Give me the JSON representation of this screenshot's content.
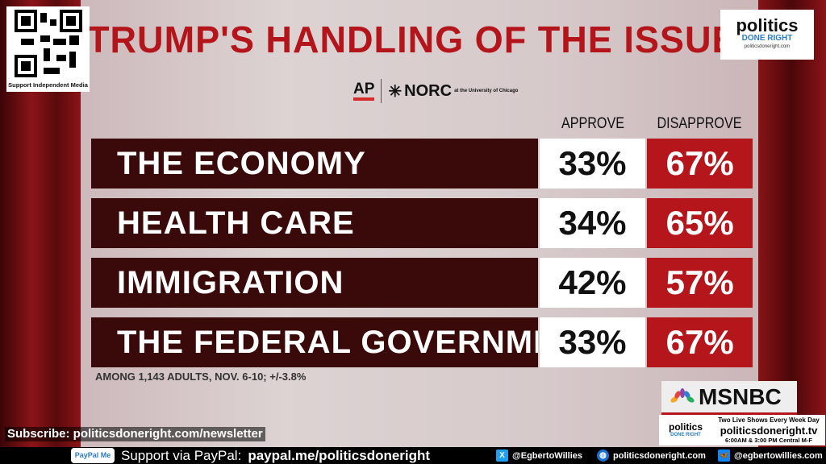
{
  "title": "TRUMP'S HANDLING OF THE ISSUE",
  "sources": {
    "ap": "AP",
    "norc": "NORC",
    "norc_sub": "at the University of Chicago"
  },
  "columns": {
    "approve": "APPROVE",
    "disapprove": "DISAPPROVE"
  },
  "rows": [
    {
      "label": "THE ECONOMY",
      "approve": "33%",
      "disapprove": "67%"
    },
    {
      "label": "HEALTH CARE",
      "approve": "34%",
      "disapprove": "65%"
    },
    {
      "label": "IMMIGRATION",
      "approve": "42%",
      "disapprove": "57%"
    },
    {
      "label": "THE FEDERAL GOVERNMENT",
      "approve": "33%",
      "disapprove": "67%"
    }
  ],
  "footnote": "AMONG 1,143 ADULTS, NOV. 6-10; +/-3.8%",
  "qr": {
    "caption": "Support Independent Media"
  },
  "pdr_logo": {
    "name": "politics",
    "sub": "DONE RIGHT",
    "url": "politicsdoneright.com"
  },
  "network": "MSNBC",
  "promo": {
    "line1": "Two Live Shows Every Week Day",
    "line2": "politicsdoneright.tv",
    "line3": "6:00AM & 3:00 PM Central M-F"
  },
  "subscribe": "Subscribe: politicsdoneright.com/newsletter",
  "paypal": {
    "badge": "PayPal Me",
    "label": "Support via PayPal:",
    "link": "paypal.me/politicsdoneright"
  },
  "social": {
    "x": "@EgbertoWillies",
    "web": "politicsdoneright.com",
    "bluesky": "@egbertowillies.com"
  },
  "colors": {
    "title": "#b3151b",
    "label_bg": "#3a0909",
    "disapprove_bg": "#b4161c"
  }
}
